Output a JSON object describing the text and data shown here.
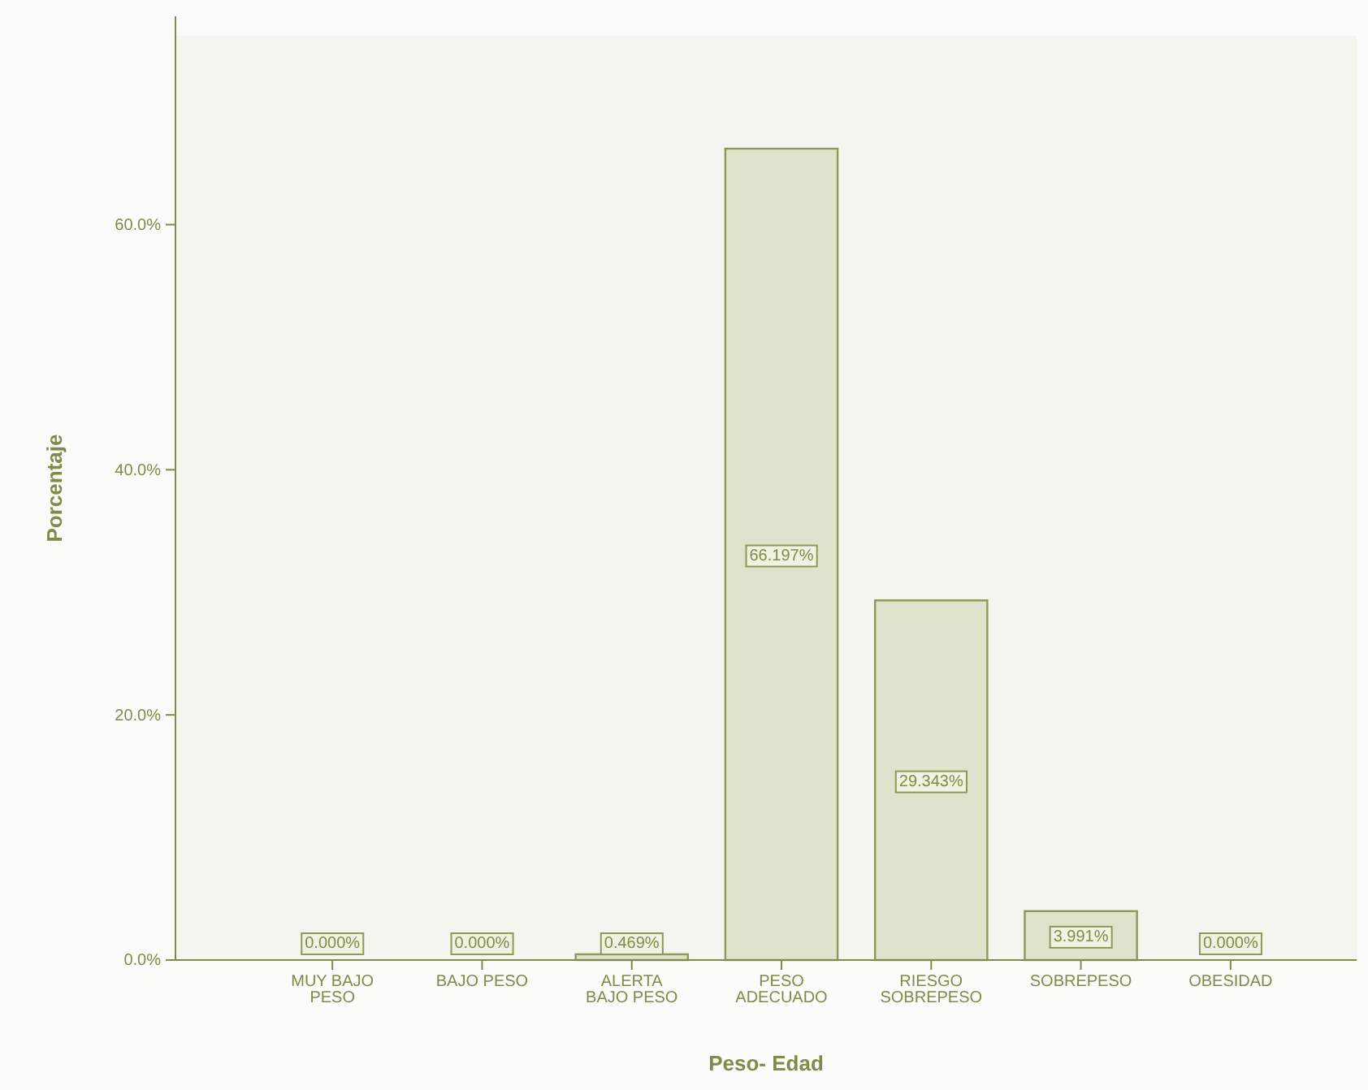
{
  "chart_data": {
    "type": "bar",
    "xlabel": "Peso- Edad",
    "ylabel": "Porcentaje",
    "categories": [
      "MUY BAJO PESO",
      "BAJO PESO",
      "ALERTA BAJO PESO",
      "PESO ADECUADO",
      "RIESGO SOBREPESO",
      "SOBREPESO",
      "OBESIDAD"
    ],
    "values": [
      0,
      0,
      0.469,
      66.197,
      29.343,
      3.991,
      0
    ],
    "value_labels": [
      "0.000%",
      "0.000%",
      "0.469%",
      "66.197%",
      "29.343%",
      "3.991%",
      "0.000%"
    ],
    "color": "#dde4cb",
    "ylim": [
      0,
      77
    ],
    "yticks": [
      {
        "value": 0,
        "label": "0.0%"
      },
      {
        "value": 20,
        "label": "20.0%"
      },
      {
        "value": 40,
        "label": "40.0%"
      },
      {
        "value": 60,
        "label": "60.0%"
      }
    ],
    "grid": false
  }
}
